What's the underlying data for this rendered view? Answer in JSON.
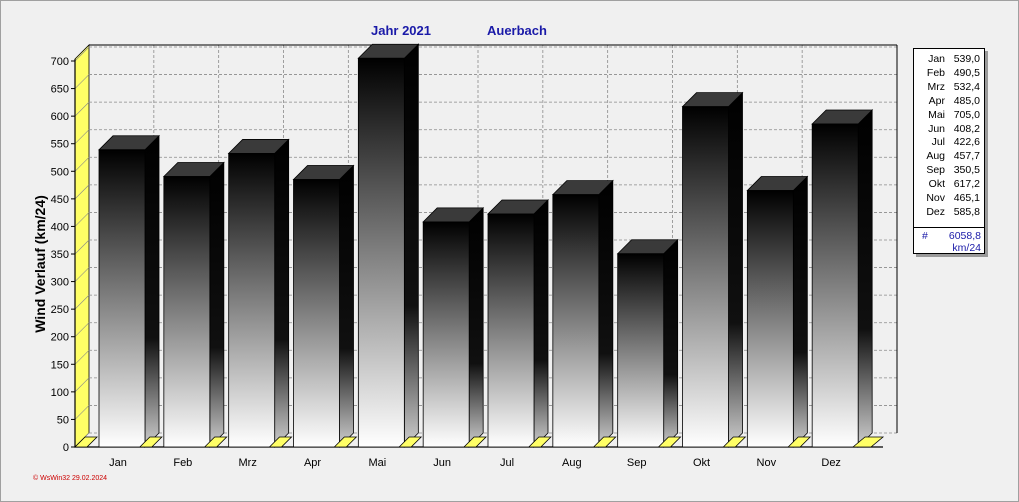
{
  "title": {
    "year_label": "Jahr  2021",
    "station": "Auerbach"
  },
  "chart_data": {
    "type": "bar",
    "categories": [
      "Jan",
      "Feb",
      "Mrz",
      "Apr",
      "Mai",
      "Jun",
      "Jul",
      "Aug",
      "Sep",
      "Okt",
      "Nov",
      "Dez"
    ],
    "values": [
      539.0,
      490.5,
      532.4,
      485.0,
      705.0,
      408.2,
      422.6,
      457.7,
      350.5,
      617.2,
      465.1,
      585.8
    ],
    "ylabel": "Wind Verlauf  (km/24)",
    "xlabel": "",
    "ylim": [
      0,
      700
    ],
    "yticks": [
      0,
      50,
      100,
      150,
      200,
      250,
      300,
      350,
      400,
      450,
      500,
      550,
      600,
      650,
      700
    ],
    "grid": true,
    "legend_position": "right"
  },
  "legend": {
    "rows": [
      {
        "month": "Jan",
        "value": "539,0"
      },
      {
        "month": "Feb",
        "value": "490,5"
      },
      {
        "month": "Mrz",
        "value": "532,4"
      },
      {
        "month": "Apr",
        "value": "485,0"
      },
      {
        "month": "Mai",
        "value": "705,0"
      },
      {
        "month": "Jun",
        "value": "408,2"
      },
      {
        "month": "Jul",
        "value": "422,6"
      },
      {
        "month": "Aug",
        "value": "457,7"
      },
      {
        "month": "Sep",
        "value": "350,5"
      },
      {
        "month": "Okt",
        "value": "617,2"
      },
      {
        "month": "Nov",
        "value": "465,1"
      },
      {
        "month": "Dez",
        "value": "585,8"
      }
    ],
    "total_symbol": "#",
    "total_value": "6058,8",
    "total_unit": "km/24"
  },
  "footer": "© WsWin32  29.02.2024",
  "colors": {
    "title": "#1a1aa8",
    "floor": "#ffff66",
    "footer": "#cc0000"
  }
}
